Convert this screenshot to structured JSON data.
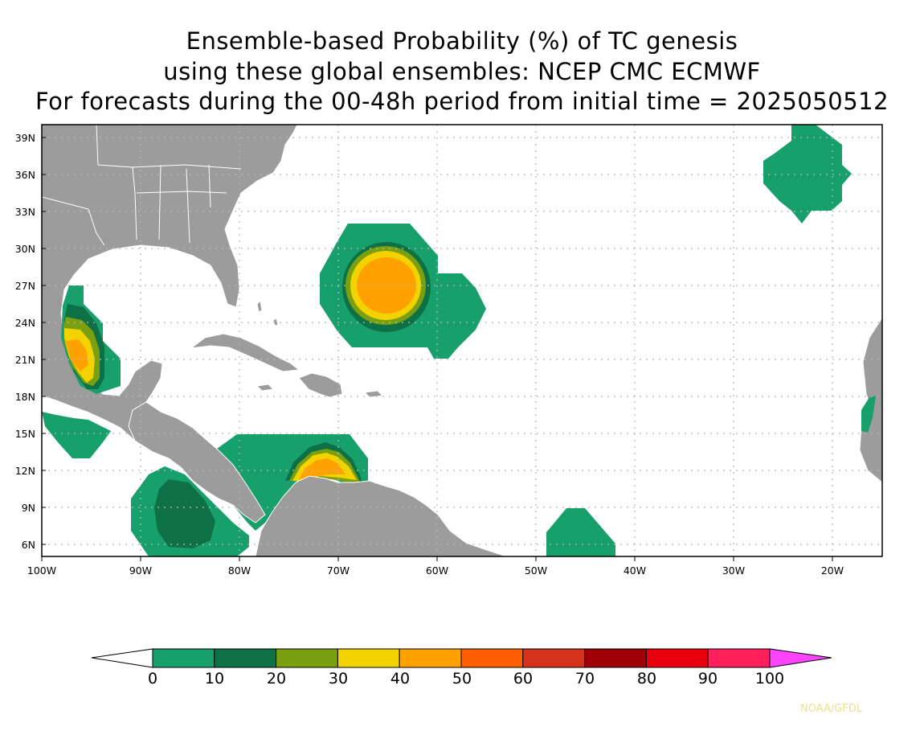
{
  "title": {
    "line1": "Ensemble-based Probability (%) of TC genesis",
    "line2": "using these global ensembles:   NCEP CMC ECMWF",
    "line3": "For forecasts during the 00-48h period from initial time = 2025050512"
  },
  "map": {
    "lat_ticks": [
      "39N",
      "36N",
      "33N",
      "30N",
      "27N",
      "24N",
      "21N",
      "18N",
      "15N",
      "12N",
      "9N",
      "6N"
    ],
    "lon_ticks": [
      "100W",
      "90W",
      "80W",
      "70W",
      "60W",
      "50W",
      "40W",
      "30W",
      "20W"
    ],
    "land_color": "#9c9c9c",
    "border_color": "#ffffff",
    "grid": "dotted"
  },
  "colorbar": {
    "labels": [
      "0",
      "10",
      "20",
      "30",
      "40",
      "50",
      "60",
      "70",
      "80",
      "90",
      "100"
    ],
    "colors": [
      "#18a06c",
      "#0e7145",
      "#7aa012",
      "#f2d300",
      "#ffa200",
      "#ff5f00",
      "#d4321b",
      "#a00008",
      "#e8000c",
      "#ff1f5a"
    ],
    "under_color": "#ffffff",
    "over_color": "#ff44ff"
  },
  "credit": "NOAA/GFDL"
}
